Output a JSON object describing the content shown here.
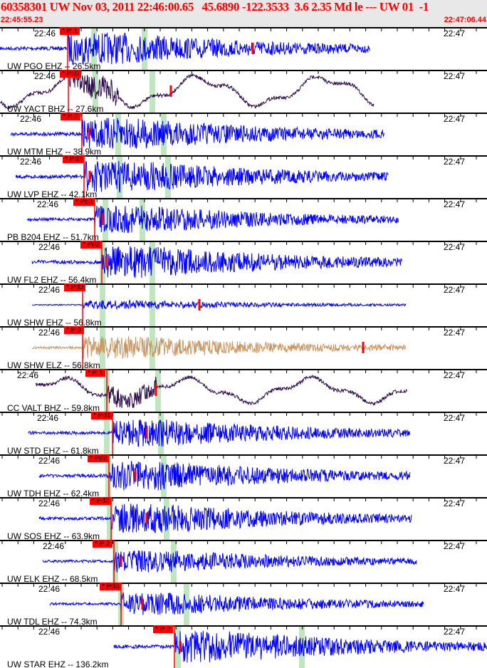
{
  "header": {
    "title": "60358301 UW Nov 03, 2011 22:46:00.65   45.6890 -122.3533  3.6 2.35 Md le --- UW 01  -1",
    "start_time": "22:45:55.23",
    "end_time": "22:47:06.44"
  },
  "time_labels": {
    "minute_a": "22:46",
    "minute_b": "22:47"
  },
  "colors": {
    "header_text": "#ff0000",
    "trace_default": "#0000ff",
    "trace_broadband": "#2a0a4a",
    "trace_elz": "#c8955f",
    "pick": "#ff0000",
    "window_band": "#bfe6bf"
  },
  "traces": [
    {
      "label": "UW PGO EHZ -- 26.5km",
      "pick": "* P 1",
      "color": "#0000ff"
    },
    {
      "label": "UW YACT BHZ -- 27.6km",
      "pick": "* Pc0",
      "color": "#2a0a4a"
    },
    {
      "label": "UW MTM EHZ -- 38.9km",
      "pick": "* P 2",
      "color": "#0000ff"
    },
    {
      "label": "UW LVP EHZ -- 42.1km",
      "pick": "* Pd2",
      "color": "#0000ff"
    },
    {
      "label": "PB B204 EHZ -- 51.7km",
      "pick": "* Pc3",
      "color": "#0000ff"
    },
    {
      "label": "UW FL2 EHZ -- 56.4km",
      "pick": "* Pd2",
      "color": "#0000ff"
    },
    {
      "label": "UW SHW EHZ -- 56.8km",
      "pick": "* Pd3",
      "color": "#0000ff"
    },
    {
      "label": "UW SHW ELZ -- 56.8km",
      "pick": "* P 3",
      "color": "#c8955f"
    },
    {
      "label": "CC VALT BHZ -- 59.8km",
      "pick": "* P 1",
      "color": "#2a0a4a"
    },
    {
      "label": "UW STD EHZ -- 61.8km",
      "pick": "* Pd1",
      "color": "#0000ff"
    },
    {
      "label": "UW TDH EHZ -- 62.4km",
      "pick": "* Pd2",
      "color": "#0000ff"
    },
    {
      "label": "UW SOS EHZ -- 63.9km",
      "pick": "* Pd2",
      "color": "#0000ff"
    },
    {
      "label": "UW ELK EHZ -- 68.5km",
      "pick": "* P 2",
      "color": "#0000ff"
    },
    {
      "label": "UW TDL EHZ -- 74.3km",
      "pick": "* Pd3",
      "color": "#0000ff"
    },
    {
      "label": "UW STAR EHZ -- 136.2km",
      "pick": "* P 2",
      "color": "#0000ff"
    }
  ]
}
